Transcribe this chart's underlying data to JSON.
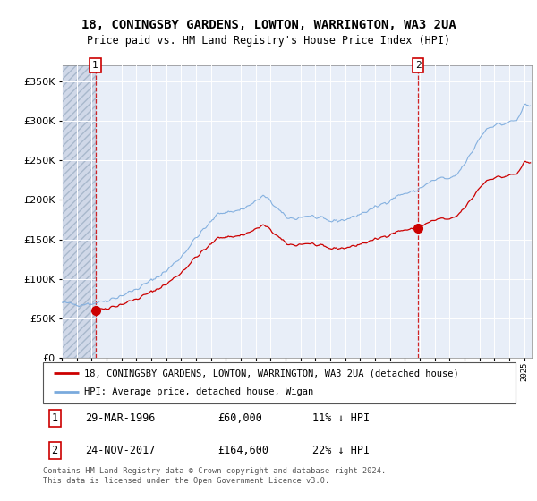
{
  "title1": "18, CONINGSBY GARDENS, LOWTON, WARRINGTON, WA3 2UA",
  "title2": "Price paid vs. HM Land Registry's House Price Index (HPI)",
  "ylim": [
    0,
    370000
  ],
  "yticks": [
    0,
    50000,
    100000,
    150000,
    200000,
    250000,
    300000,
    350000
  ],
  "hpi_color": "#7aaadd",
  "price_color": "#cc0000",
  "bg_plot": "#e8eef8",
  "bg_hatch": "#d0d8e8",
  "legend_label1": "18, CONINGSBY GARDENS, LOWTON, WARRINGTON, WA3 2UA (detached house)",
  "legend_label2": "HPI: Average price, detached house, Wigan",
  "sale1_date": "29-MAR-1996",
  "sale1_price": 60000,
  "sale1_hpi": "11% ↓ HPI",
  "sale2_date": "24-NOV-2017",
  "sale2_price": 164600,
  "sale2_hpi": "22% ↓ HPI",
  "footer": "Contains HM Land Registry data © Crown copyright and database right 2024.\nThis data is licensed under the Open Government Licence v3.0.",
  "xlim_start": 1994.0,
  "xlim_end": 2025.5,
  "hatch_end": 1996.25,
  "marker1_x": 1996.25,
  "marker1_y": 60000,
  "marker2_x": 2017.9,
  "marker2_y": 164600
}
